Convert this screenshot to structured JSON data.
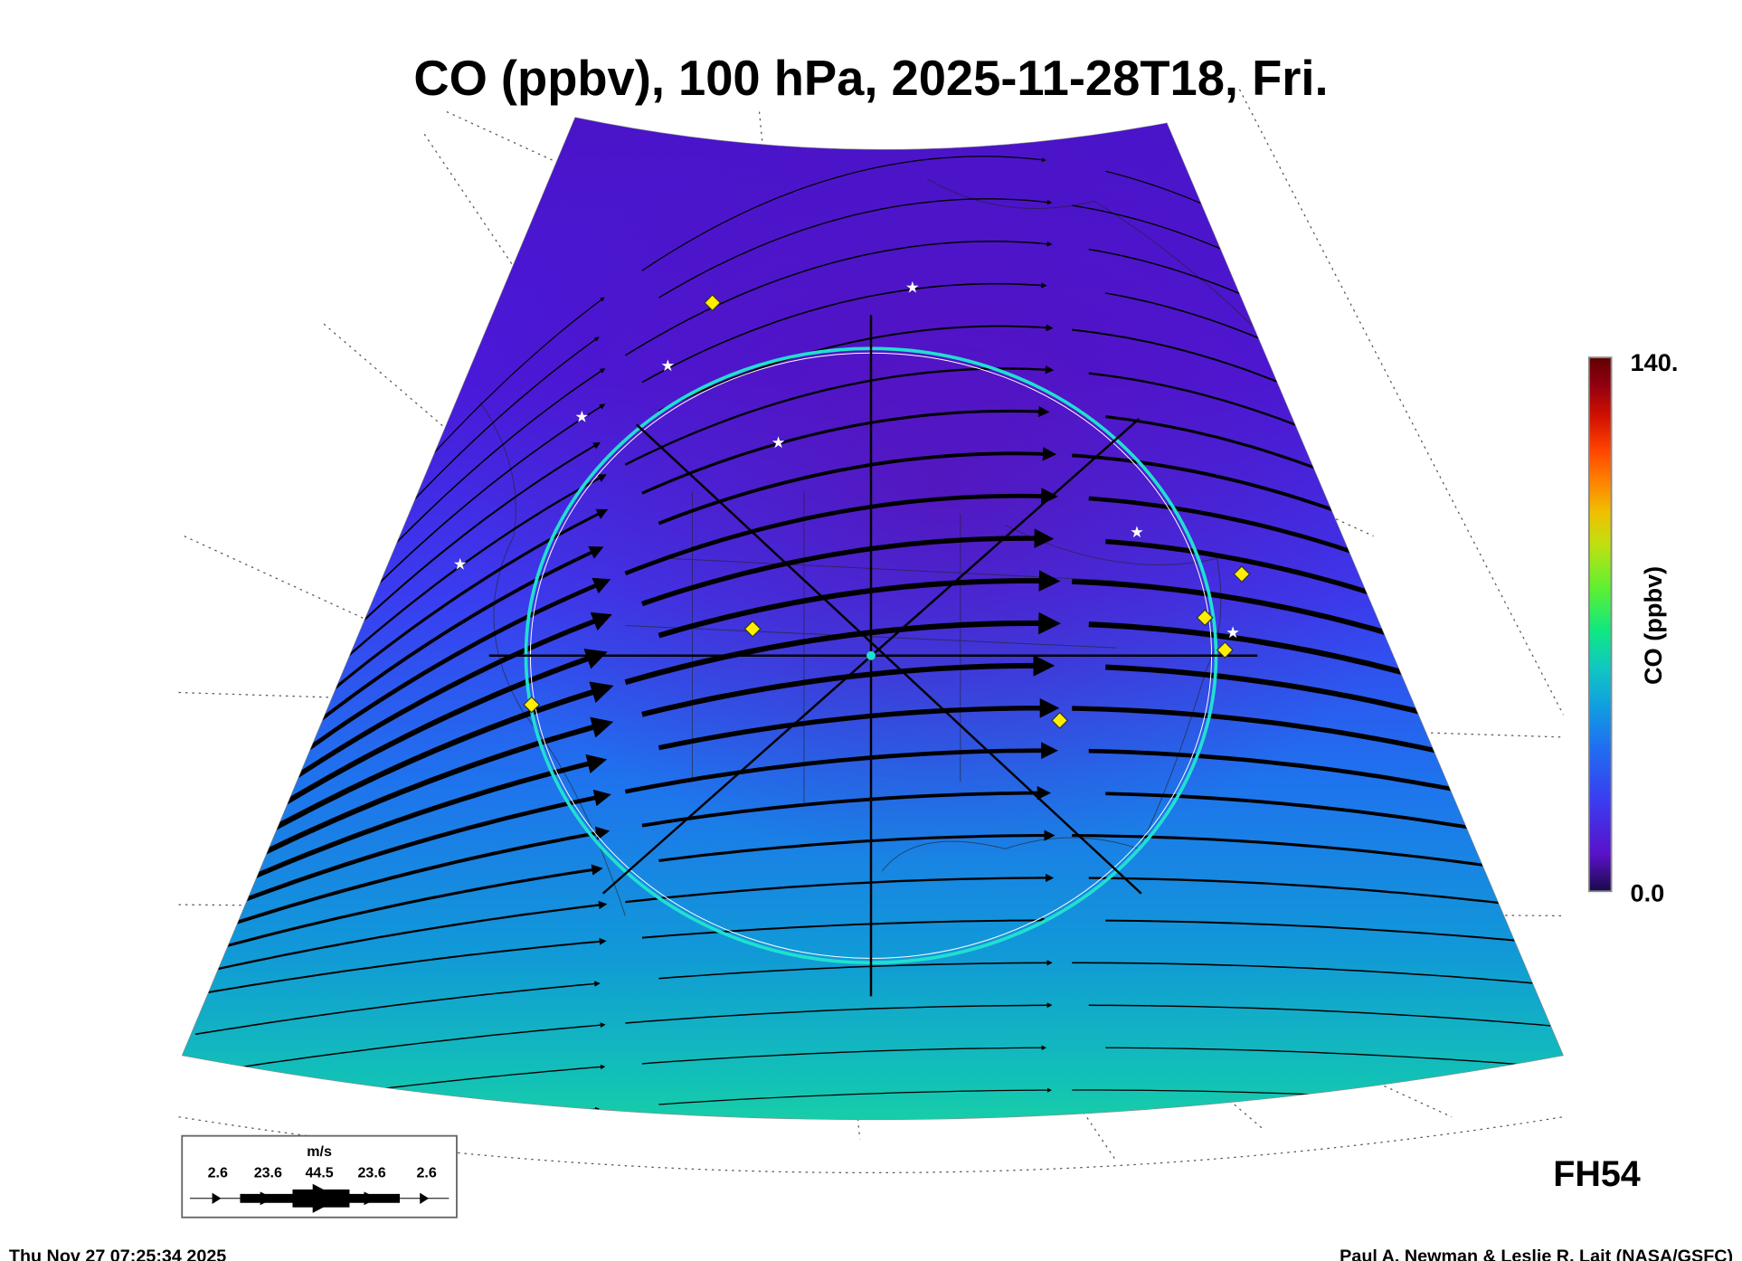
{
  "chart_data": {
    "type": "heatmap",
    "title": "CO (ppbv), 100 hPa, 2025-11-28T18, Fri.",
    "variable": "CO",
    "units": "ppbv",
    "pressure_level": "100 hPa",
    "valid_time": "2025-11-28T18",
    "colorbar": {
      "label": "CO (ppbv)",
      "min_label": "0.0",
      "max_label": "140.",
      "range": [
        0,
        140
      ],
      "colormap": [
        "#1a0a4a",
        "#5a12c8",
        "#3a3cf0",
        "#1f6ff0",
        "#10a0e0",
        "#10c8c0",
        "#10e880",
        "#60f030",
        "#c0e010",
        "#f0c000",
        "#ff8000",
        "#ff4000",
        "#d01000",
        "#900010",
        "#600000"
      ]
    },
    "wind_legend": {
      "units": "m/s",
      "speeds": [
        "2.6",
        "23.6",
        "44.5",
        "23.6",
        "2.6"
      ]
    },
    "forecast_hour": "FH54",
    "colors": {
      "circle": "#20e0d0",
      "diamond": "#ffee00",
      "star": "#ffffff",
      "streamline": "#000000"
    }
  },
  "footer": {
    "timestamp": "Thu Nov 27 07:25:34 2025",
    "credit": "Paul A. Newman & Leslie R. Lait (NASA/GSFC)"
  }
}
